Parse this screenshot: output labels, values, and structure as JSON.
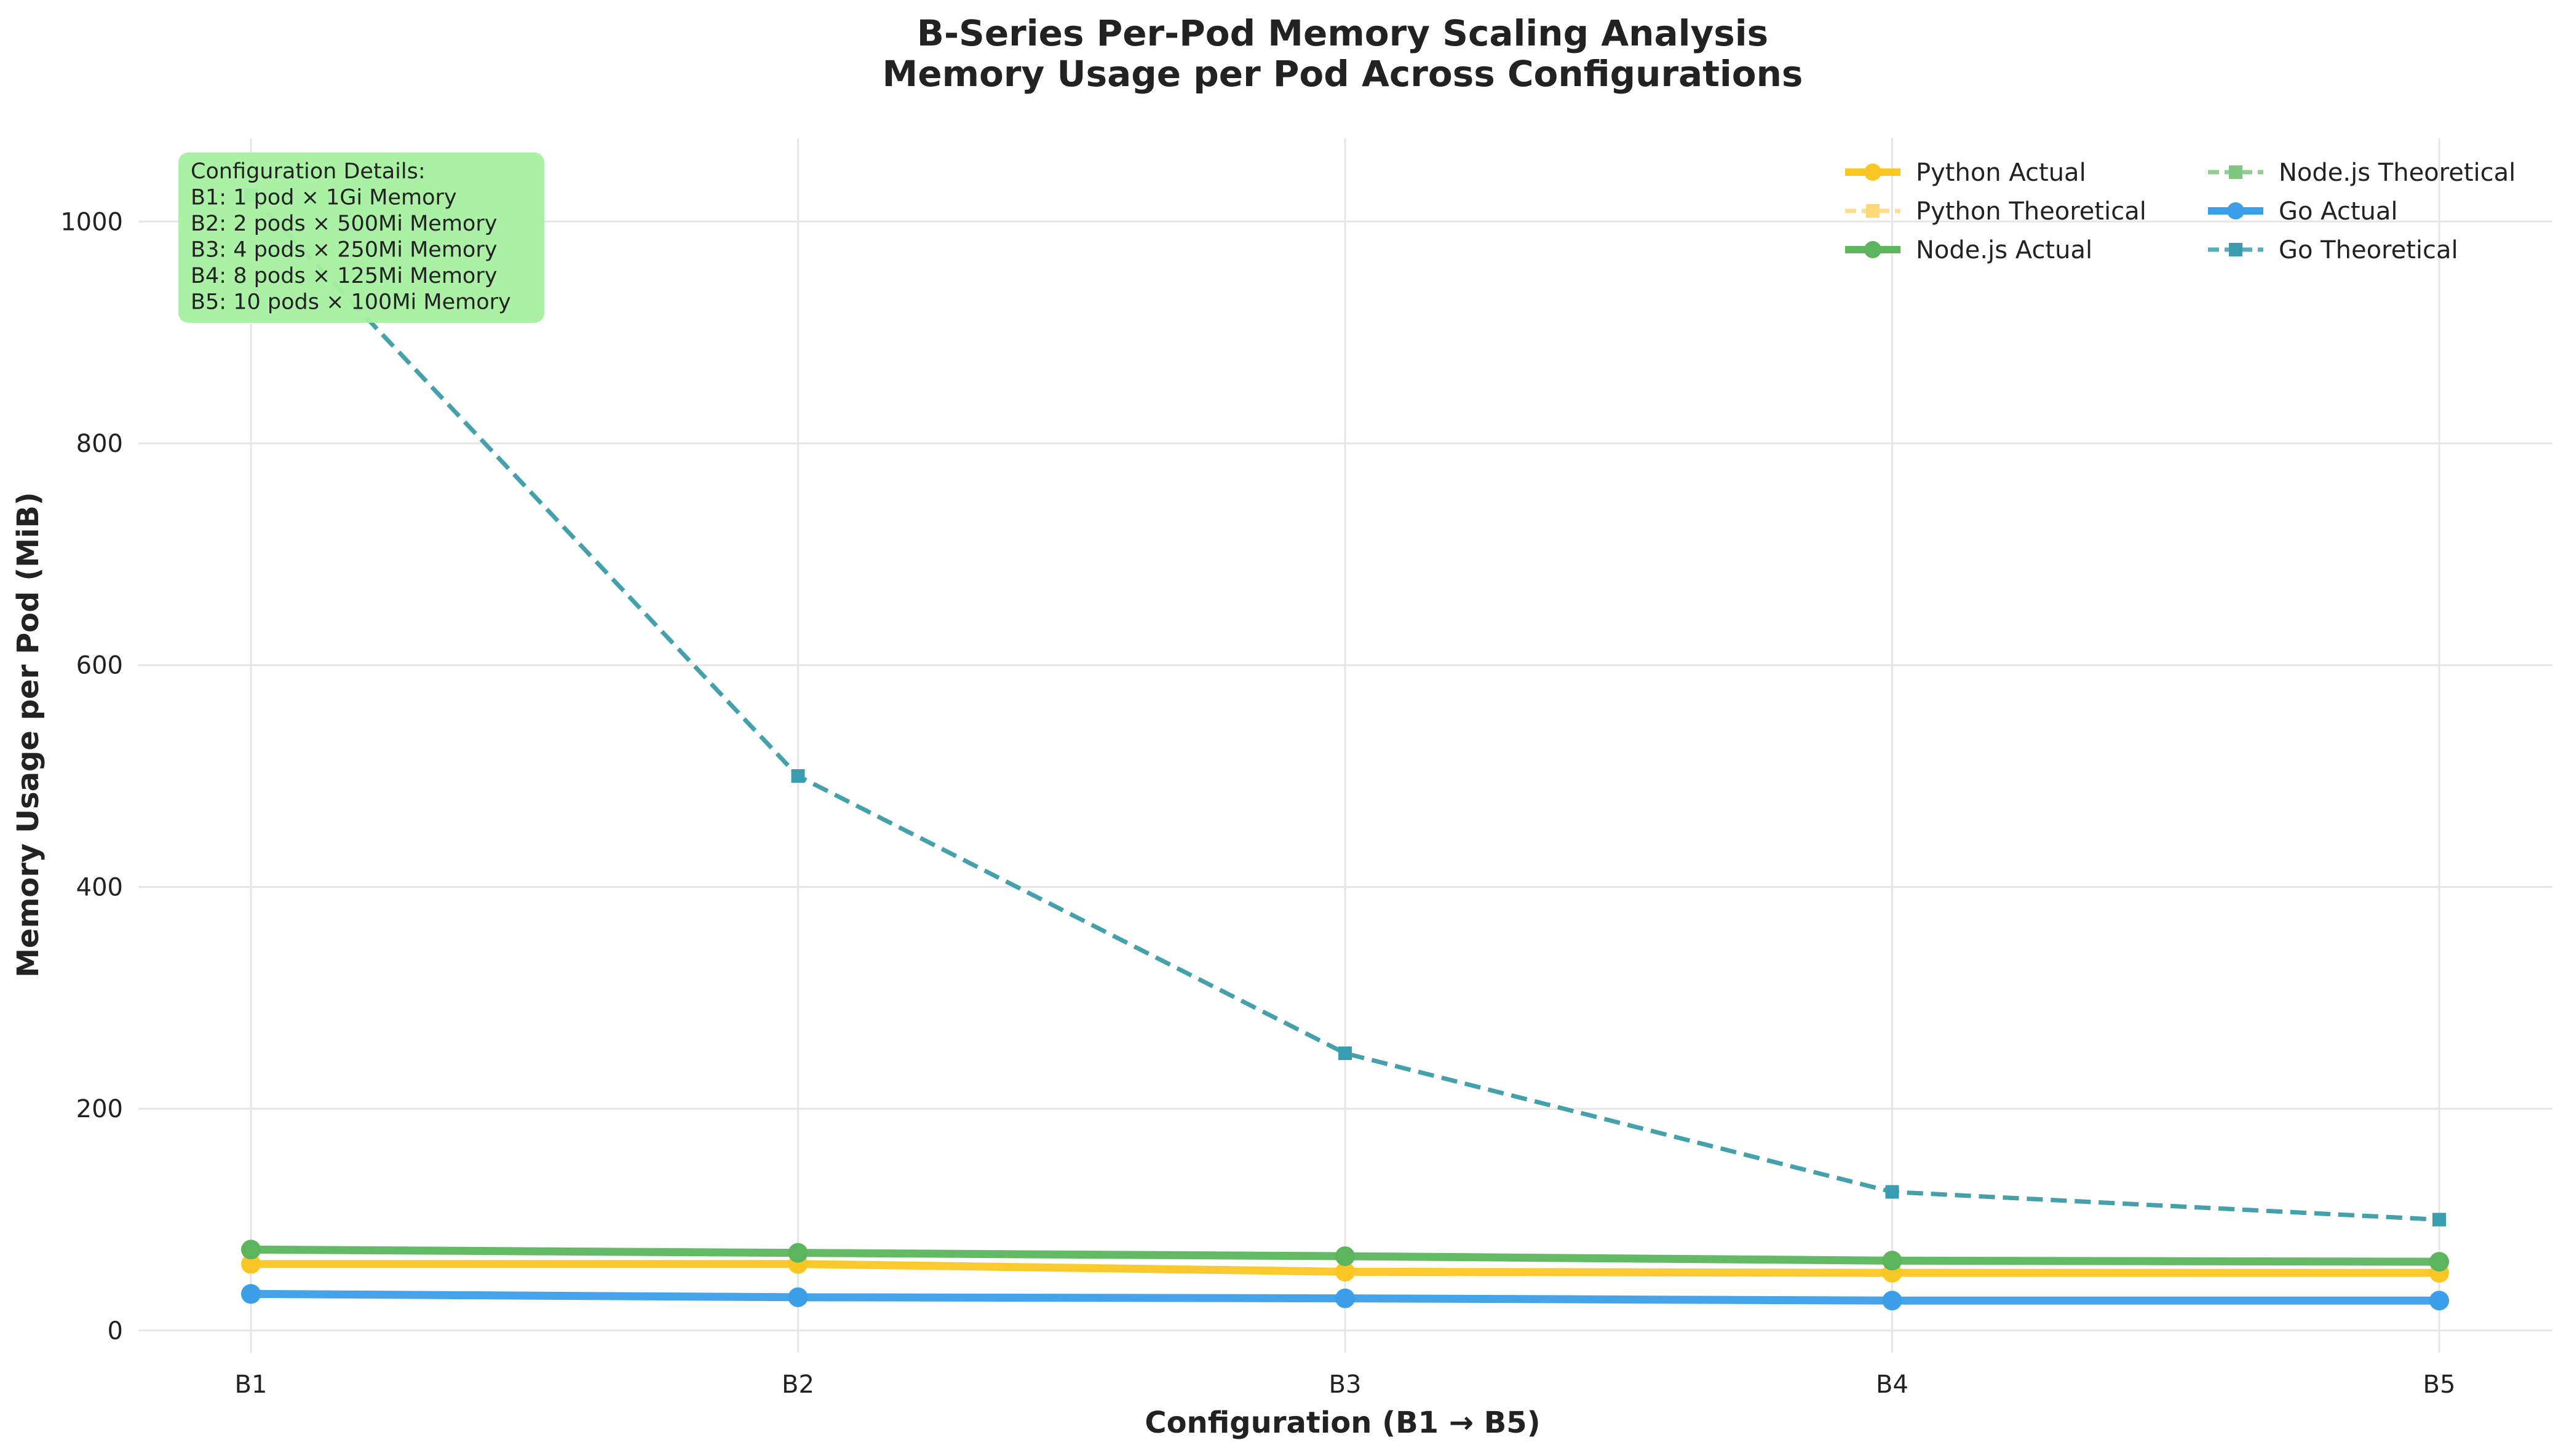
{
  "chart_data": {
    "type": "line",
    "title": "B-Series Per-Pod Memory Scaling Analysis",
    "subtitle": "Memory Usage per Pod Across Configurations",
    "xlabel": "Configuration (B1 → B5)",
    "ylabel": "Memory Usage per Pod (MiB)",
    "categories": [
      "B1",
      "B2",
      "B3",
      "B4",
      "B5"
    ],
    "ylim": [
      -20,
      1075
    ],
    "yticks": [
      0,
      200,
      400,
      600,
      800,
      1000
    ],
    "grid": true,
    "legend_position": "top-right",
    "series": [
      {
        "name": "Python Actual",
        "values": [
          60,
          60,
          53,
          52,
          52
        ],
        "color": "#f9c623",
        "style": "solid",
        "marker": "circle"
      },
      {
        "name": "Python Theoretical",
        "values": [
          1024,
          500,
          250,
          125,
          100
        ],
        "color": "#fdd876",
        "style": "dashed",
        "marker": "square"
      },
      {
        "name": "Node.js Actual",
        "values": [
          73,
          70,
          67,
          63,
          62
        ],
        "color": "#5cb55c",
        "style": "solid",
        "marker": "circle"
      },
      {
        "name": "Node.js Theoretical",
        "values": [
          1024,
          500,
          250,
          125,
          100
        ],
        "color": "#7fc67f",
        "style": "dashed",
        "marker": "square"
      },
      {
        "name": "Go Actual",
        "values": [
          33,
          30,
          29,
          27,
          27
        ],
        "color": "#3b9ee8",
        "style": "solid",
        "marker": "circle"
      },
      {
        "name": "Go Theoretical",
        "values": [
          1024,
          500,
          250,
          125,
          100
        ],
        "color": "#3a9cb0",
        "style": "dashed",
        "marker": "square"
      }
    ],
    "annotation": {
      "lines": [
        "Configuration Details:",
        "B1: 1 pod × 1Gi Memory",
        "B2: 2 pods × 500Mi Memory",
        "B3: 4 pods × 250Mi Memory",
        "B4: 8 pods × 125Mi Memory",
        "B5: 10 pods × 100Mi Memory"
      ],
      "background": "#a5f0a0"
    }
  }
}
